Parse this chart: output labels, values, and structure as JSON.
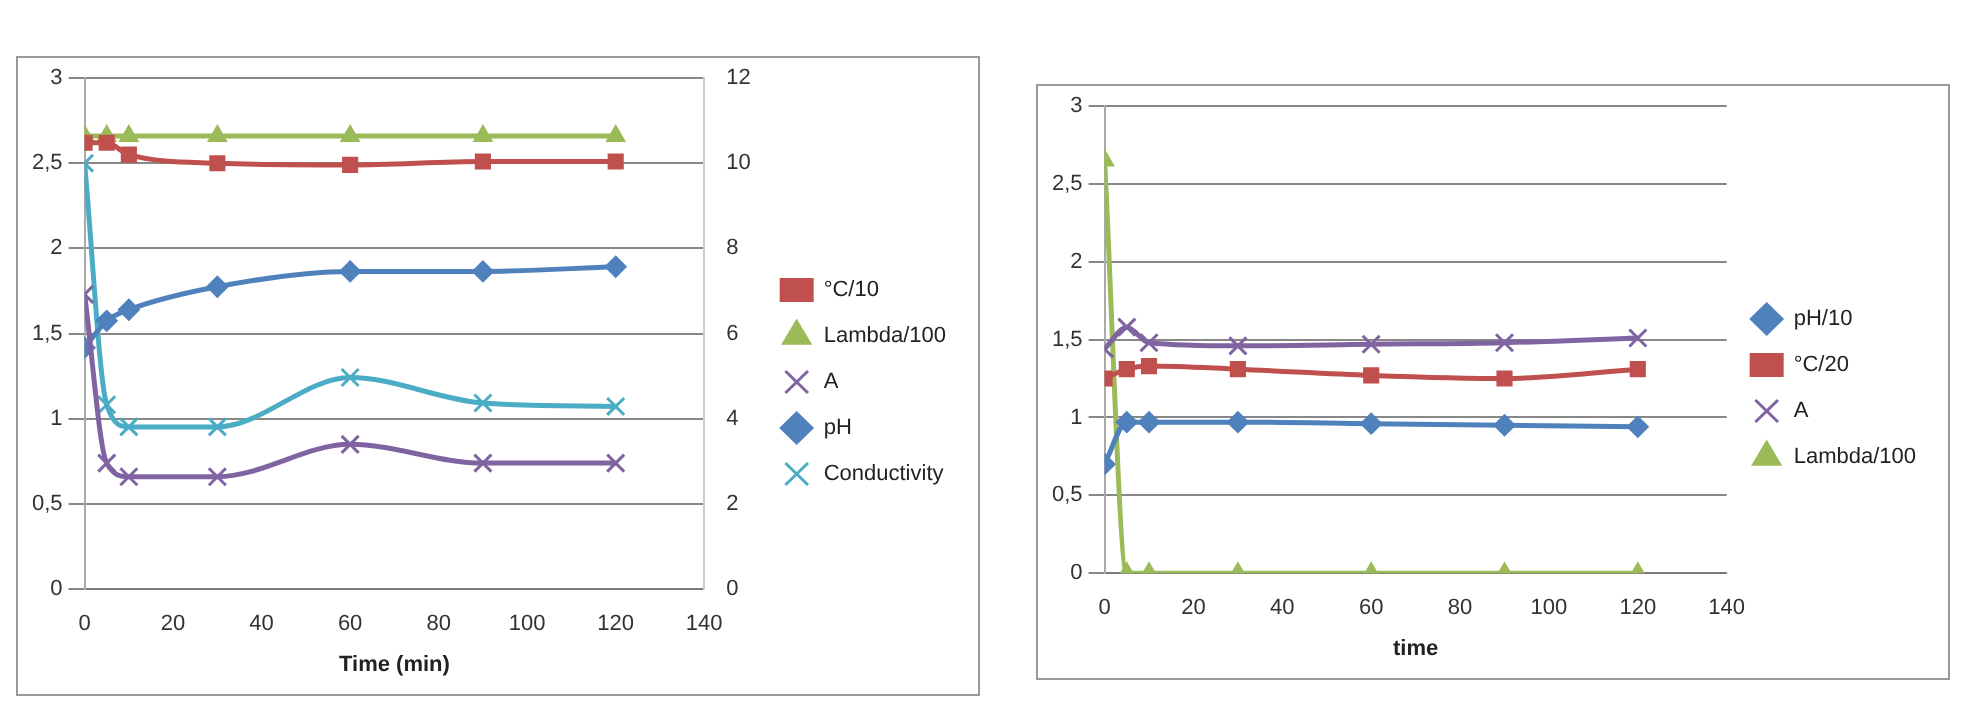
{
  "chart_data": [
    {
      "type": "line",
      "xlabel": "Time (min)",
      "x": [
        0,
        5,
        10,
        30,
        60,
        90,
        120
      ],
      "xlim": [
        0,
        140
      ],
      "xticks": [
        0,
        20,
        40,
        60,
        80,
        100,
        120,
        140
      ],
      "ylim": [
        0,
        3
      ],
      "yticks": [
        0,
        {
          "value": 0.5,
          "label": "0,5"
        },
        1,
        {
          "value": 1.5,
          "label": "1,5"
        },
        2,
        {
          "value": 2.5,
          "label": "2,5"
        },
        3
      ],
      "y2lim": [
        0,
        12
      ],
      "y2ticks": [
        0,
        2,
        4,
        6,
        8,
        10,
        12
      ],
      "grid": "y",
      "legend": "right",
      "series": [
        {
          "name": "°C/10",
          "color": "#c0504d",
          "marker": "square",
          "values": [
            2.62,
            2.62,
            2.55,
            2.5,
            2.49,
            2.51,
            2.51
          ]
        },
        {
          "name": "Lambda/100",
          "color": "#9bbb59",
          "marker": "triangle",
          "values": [
            2.66,
            2.66,
            2.66,
            2.66,
            2.66,
            2.66,
            2.66
          ]
        },
        {
          "name": "A",
          "color": "#8064a2",
          "marker": "cross",
          "values": [
            1.73,
            0.74,
            0.66,
            0.66,
            0.85,
            0.74,
            0.74
          ]
        },
        {
          "name": "pH",
          "color": "#4f81bd",
          "marker": "diamond",
          "axis": "y2",
          "values": [
            5.67,
            6.3,
            6.56,
            7.1,
            7.46,
            7.46,
            7.57
          ]
        },
        {
          "name": "Conductivity",
          "color": "#4bacc6",
          "marker": "cross",
          "axis": "y2",
          "values": [
            10.0,
            4.33,
            3.81,
            3.81,
            4.97,
            4.37,
            4.29
          ]
        }
      ]
    },
    {
      "type": "line",
      "xlabel": "time",
      "x": [
        0,
        5,
        10,
        30,
        60,
        90,
        120
      ],
      "xlim": [
        0,
        140
      ],
      "xticks": [
        0,
        20,
        40,
        60,
        80,
        100,
        120,
        140
      ],
      "ylim": [
        0,
        3
      ],
      "yticks": [
        0,
        {
          "value": 0.5,
          "label": "0,5"
        },
        1,
        {
          "value": 1.5,
          "label": "1,5"
        },
        2,
        {
          "value": 2.5,
          "label": "2,5"
        },
        3
      ],
      "grid": "y",
      "legend": "right",
      "series": [
        {
          "name": "pH/10",
          "color": "#4f81bd",
          "marker": "diamond",
          "values": [
            0.7,
            0.97,
            0.97,
            0.97,
            0.96,
            0.95,
            0.94
          ]
        },
        {
          "name": "°C/20",
          "color": "#c0504d",
          "marker": "square",
          "values": [
            1.25,
            1.31,
            1.33,
            1.31,
            1.27,
            1.25,
            1.31
          ]
        },
        {
          "name": "A",
          "color": "#8064a2",
          "marker": "cross",
          "values": [
            1.44,
            1.58,
            1.48,
            1.46,
            1.47,
            1.48,
            1.51
          ]
        },
        {
          "name": "Lambda/100",
          "color": "#9bbb59",
          "marker": "triangle",
          "values": [
            2.65,
            0,
            0,
            0,
            0,
            0,
            0
          ]
        }
      ]
    }
  ]
}
